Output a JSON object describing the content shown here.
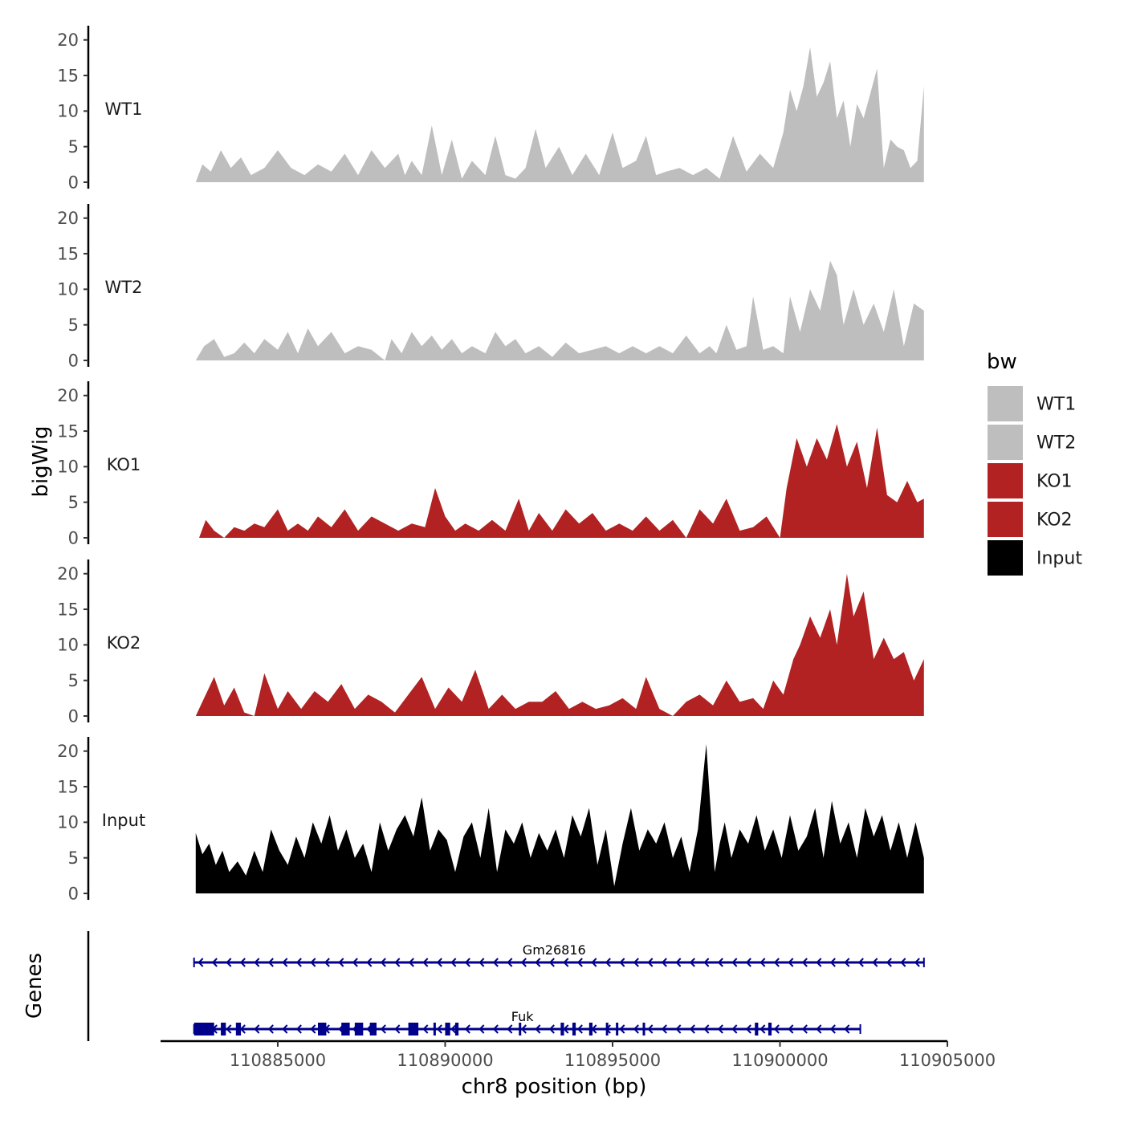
{
  "chart_data": {
    "type": "area",
    "chromosome": "chr8",
    "xlabel": "chr8 position (bp)",
    "ylabel": "bigWig",
    "gene_panel_label": "Genes",
    "xlim": [
      110881500,
      110905000
    ],
    "x_ticks": [
      110885000,
      110890000,
      110895000,
      110900000,
      110905000
    ],
    "x_tick_labels": [
      "110885000",
      "110890000",
      "110895000",
      "110900000",
      "110905000"
    ],
    "ylim": [
      0,
      22
    ],
    "y_ticks": [
      0,
      5,
      10,
      15,
      20
    ],
    "y_tick_labels": [
      "0",
      "5",
      "10",
      "15",
      "20"
    ],
    "legend_title": "bw",
    "legend": [
      {
        "label": "WT1",
        "color": "#bebebe"
      },
      {
        "label": "WT2",
        "color": "#bebebe"
      },
      {
        "label": "KO1",
        "color": "#b22222"
      },
      {
        "label": "KO2",
        "color": "#b22222"
      },
      {
        "label": "Input",
        "color": "#000000"
      }
    ],
    "series": [
      {
        "name": "WT1",
        "color": "#bebebe",
        "x": [
          110882550,
          110882750,
          110883000,
          110883300,
          110883600,
          110883900,
          110884200,
          110884600,
          110885000,
          110885400,
          110885800,
          110886200,
          110886600,
          110887000,
          110887400,
          110887800,
          110888200,
          110888600,
          110888800,
          110889000,
          110889300,
          110889600,
          110889900,
          110890200,
          110890500,
          110890800,
          110891200,
          110891500,
          110891800,
          110892100,
          110892400,
          110892700,
          110893000,
          110893400,
          110893800,
          110894200,
          110894600,
          110895000,
          110895300,
          110895700,
          110896000,
          110896300,
          110896600,
          110897000,
          110897400,
          110897800,
          110898200,
          110898600,
          110899000,
          110899400,
          110899800,
          110900100,
          110900300,
          110900500,
          110900700,
          110900900,
          110901100,
          110901300,
          110901500,
          110901700,
          110901900,
          110902100,
          110902300,
          110902500,
          110902700,
          110902900,
          110903100,
          110903300,
          110903500,
          110903700,
          110903900,
          110904100,
          110904300
        ],
        "y": [
          0,
          2.5,
          1.5,
          4.5,
          2,
          3.5,
          1,
          2,
          4.5,
          2,
          1,
          2.5,
          1.5,
          4,
          1,
          4.5,
          2,
          4,
          1,
          3,
          1,
          8,
          1,
          6,
          0.5,
          3,
          1,
          6.5,
          1,
          0.5,
          2,
          7.5,
          2,
          5,
          1,
          4,
          1,
          7,
          2,
          3,
          6.5,
          1,
          1.5,
          2,
          1,
          2,
          0.5,
          6.5,
          1.5,
          4,
          2,
          7,
          13,
          10,
          13.5,
          19,
          12,
          14,
          17,
          9,
          11.5,
          5,
          11,
          9,
          12.5,
          16,
          2,
          6,
          5,
          4.5,
          2,
          3,
          13.5
        ]
      },
      {
        "name": "WT2",
        "color": "#bebebe",
        "x": [
          110882550,
          110882800,
          110883100,
          110883400,
          110883700,
          110884000,
          110884300,
          110884600,
          110885000,
          110885300,
          110885600,
          110885900,
          110886200,
          110886600,
          110887000,
          110887400,
          110887800,
          110888200,
          110888400,
          110888700,
          110889000,
          110889300,
          110889600,
          110889900,
          110890200,
          110890500,
          110890800,
          110891200,
          110891500,
          110891800,
          110892100,
          110892400,
          110892800,
          110893200,
          110893600,
          110894000,
          110894400,
          110894800,
          110895200,
          110895600,
          110896000,
          110896400,
          110896800,
          110897200,
          110897600,
          110897900,
          110898100,
          110898400,
          110898700,
          110899000,
          110899200,
          110899500,
          110899800,
          110900100,
          110900300,
          110900600,
          110900900,
          110901200,
          110901500,
          110901700,
          110901900,
          110902200,
          110902500,
          110902800,
          110903100,
          110903400,
          110903700,
          110904000,
          110904300
        ],
        "y": [
          0,
          2,
          3,
          0.5,
          1,
          2.5,
          1,
          3,
          1.5,
          4,
          1,
          4.5,
          2,
          4,
          1,
          2,
          1.5,
          0,
          3,
          1,
          4,
          2,
          3.5,
          1.5,
          3,
          1,
          2,
          1,
          4,
          2,
          3,
          1,
          2,
          0.5,
          2.5,
          1,
          1.5,
          2,
          1,
          2,
          1,
          2,
          1,
          3.5,
          1,
          2,
          1,
          5,
          1.5,
          2,
          9,
          1.5,
          2,
          1,
          9,
          4,
          10,
          7,
          14,
          12,
          5,
          10,
          5,
          8,
          4,
          10,
          2,
          8,
          7
        ]
      },
      {
        "name": "KO1",
        "color": "#b22222",
        "x": [
          110882650,
          110882850,
          110883100,
          110883400,
          110883700,
          110884000,
          110884300,
          110884600,
          110885000,
          110885300,
          110885600,
          110885900,
          110886200,
          110886600,
          110887000,
          110887400,
          110887800,
          110888200,
          110888600,
          110889000,
          110889400,
          110889700,
          110890000,
          110890300,
          110890600,
          110891000,
          110891400,
          110891800,
          110892200,
          110892500,
          110892800,
          110893200,
          110893600,
          110894000,
          110894400,
          110894800,
          110895200,
          110895600,
          110896000,
          110896400,
          110896800,
          110897200,
          110897600,
          110898000,
          110898400,
          110898800,
          110899200,
          110899600,
          110900000,
          110900200,
          110900500,
          110900800,
          110901100,
          110901400,
          110901700,
          110902000,
          110902300,
          110902600,
          110902900,
          110903200,
          110903500,
          110903800,
          110904100,
          110904300
        ],
        "y": [
          0,
          2.5,
          1,
          0,
          1.5,
          1,
          2,
          1.5,
          4,
          1,
          2,
          1,
          3,
          1.5,
          4,
          1,
          3,
          2,
          1,
          2,
          1.5,
          7,
          3,
          1,
          2,
          1,
          2.5,
          1,
          5.5,
          1,
          3.5,
          1,
          4,
          2,
          3.5,
          1,
          2,
          1,
          3,
          1,
          2.5,
          0,
          4,
          2,
          5.5,
          1,
          1.5,
          3,
          0,
          7,
          14,
          10,
          14,
          11,
          16,
          10,
          13.5,
          7,
          15.5,
          6,
          5,
          8,
          5,
          5.5
        ]
      },
      {
        "name": "KO2",
        "color": "#b22222",
        "x": [
          110882550,
          110882800,
          110883100,
          110883400,
          110883700,
          110884000,
          110884300,
          110884600,
          110885000,
          110885300,
          110885700,
          110886100,
          110886500,
          110886900,
          110887300,
          110887700,
          110888100,
          110888500,
          110888900,
          110889300,
          110889700,
          110890100,
          110890500,
          110890900,
          110891300,
          110891700,
          110892100,
          110892500,
          110892900,
          110893300,
          110893700,
          110894100,
          110894500,
          110894900,
          110895300,
          110895700,
          110896000,
          110896400,
          110896800,
          110897200,
          110897600,
          110898000,
          110898400,
          110898800,
          110899200,
          110899500,
          110899800,
          110900100,
          110900400,
          110900600,
          110900900,
          110901200,
          110901500,
          110901700,
          110902000,
          110902200,
          110902500,
          110902800,
          110903100,
          110903400,
          110903700,
          110904000,
          110904300
        ],
        "y": [
          0,
          2.5,
          5.5,
          1.5,
          4,
          0.5,
          0,
          6,
          1,
          3.5,
          1,
          3.5,
          2,
          4.5,
          1,
          3,
          2,
          0.5,
          3,
          5.5,
          1,
          4,
          2,
          6.5,
          1,
          3,
          1,
          2,
          2,
          3.5,
          1,
          2,
          1,
          1.5,
          2.5,
          1,
          5.5,
          1,
          0,
          2,
          3,
          1.5,
          5,
          2,
          2.5,
          1,
          5,
          3,
          8,
          10,
          14,
          11,
          15,
          10,
          20,
          14,
          17.5,
          8,
          11,
          8,
          9,
          5,
          8
        ]
      },
      {
        "name": "Input",
        "color": "#000000",
        "x": [
          110882550,
          110882750,
          110882950,
          110883150,
          110883350,
          110883550,
          110883800,
          110884050,
          110884300,
          110884550,
          110884800,
          110885050,
          110885300,
          110885550,
          110885800,
          110886050,
          110886300,
          110886550,
          110886800,
          110887050,
          110887300,
          110887550,
          110887800,
          110888050,
          110888300,
          110888550,
          110888800,
          110889050,
          110889300,
          110889550,
          110889800,
          110890050,
          110890300,
          110890550,
          110890800,
          110891050,
          110891300,
          110891550,
          110891800,
          110892050,
          110892300,
          110892550,
          110892800,
          110893050,
          110893300,
          110893550,
          110893800,
          110894050,
          110894300,
          110894550,
          110894800,
          110895050,
          110895300,
          110895550,
          110895800,
          110896050,
          110896300,
          110896550,
          110896800,
          110897050,
          110897300,
          110897550,
          110897800,
          110898050,
          110898200,
          110898350,
          110898550,
          110898800,
          110899050,
          110899300,
          110899550,
          110899800,
          110900050,
          110900300,
          110900550,
          110900800,
          110901050,
          110901300,
          110901550,
          110901800,
          110902050,
          110902300,
          110902550,
          110902800,
          110903050,
          110903300,
          110903550,
          110903800,
          110904050,
          110904300
        ],
        "y": [
          8.5,
          5.5,
          7,
          4,
          6,
          3,
          4.5,
          2.5,
          6,
          3,
          9,
          6,
          4,
          8,
          5,
          10,
          7,
          11,
          6,
          9,
          5,
          7,
          3,
          10,
          6,
          9,
          11,
          8,
          13.5,
          6,
          9,
          7.5,
          3,
          8,
          10,
          5,
          12,
          3,
          9,
          7,
          10,
          5,
          8.5,
          6,
          9,
          5,
          11,
          8,
          12,
          4,
          9,
          1,
          7,
          12,
          6,
          9,
          7,
          10,
          5,
          8,
          3,
          9,
          21,
          3,
          7,
          10,
          5,
          9,
          7,
          11,
          6,
          9,
          5,
          11,
          6,
          8,
          12,
          5,
          13,
          7,
          10,
          5,
          12,
          8,
          11,
          6,
          10,
          5,
          10,
          5
        ]
      }
    ],
    "genes": [
      {
        "name": "Gm26816",
        "strand": "-",
        "start": 110882500,
        "end": 110904300,
        "exons": []
      },
      {
        "name": "Fuk",
        "strand": "-",
        "start": 110882500,
        "end": 110902400,
        "exons": [
          [
            110882500,
            110883100
          ],
          [
            110883300,
            110883450
          ],
          [
            110883750,
            110883900
          ],
          [
            110886200,
            110886450
          ],
          [
            110886900,
            110887150
          ],
          [
            110887300,
            110887550
          ],
          [
            110887750,
            110887950
          ],
          [
            110888900,
            110889200
          ],
          [
            110889650,
            110889700
          ],
          [
            110890000,
            110890150
          ],
          [
            110890300,
            110890400
          ],
          [
            110892200,
            110892250
          ],
          [
            110893450,
            110893550
          ],
          [
            110893800,
            110893900
          ],
          [
            110894300,
            110894400
          ],
          [
            110894800,
            110894850
          ],
          [
            110895100,
            110895150
          ],
          [
            110895900,
            110895950
          ],
          [
            110899250,
            110899350
          ],
          [
            110899650,
            110899750
          ]
        ]
      }
    ]
  }
}
